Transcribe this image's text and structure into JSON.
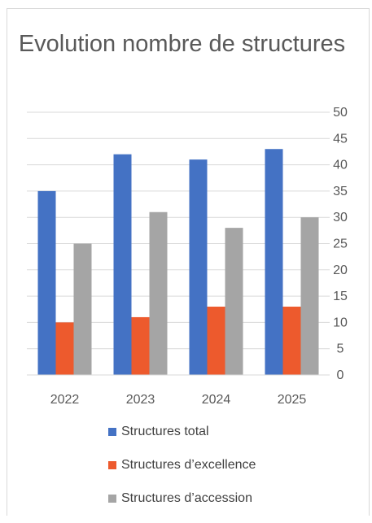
{
  "chart_data": {
    "type": "bar",
    "title": "Evolution nombre de structures",
    "categories": [
      "2022",
      "2023",
      "2024",
      "2025"
    ],
    "series": [
      {
        "name": "Structures total",
        "color": "#4472c4",
        "values": [
          35,
          42,
          41,
          43
        ]
      },
      {
        "name": "Structures d’excellence",
        "color": "#ed5a2d",
        "values": [
          10,
          11,
          13,
          13
        ]
      },
      {
        "name": "Structures d’accession",
        "color": "#a5a5a5",
        "values": [
          25,
          31,
          28,
          30
        ]
      }
    ],
    "ylim": [
      0,
      50
    ],
    "yticks": [
      0,
      5,
      10,
      15,
      20,
      25,
      30,
      35,
      40,
      45,
      50
    ],
    "y_axis_position": "right",
    "grid": true,
    "legend_position": "bottom"
  }
}
